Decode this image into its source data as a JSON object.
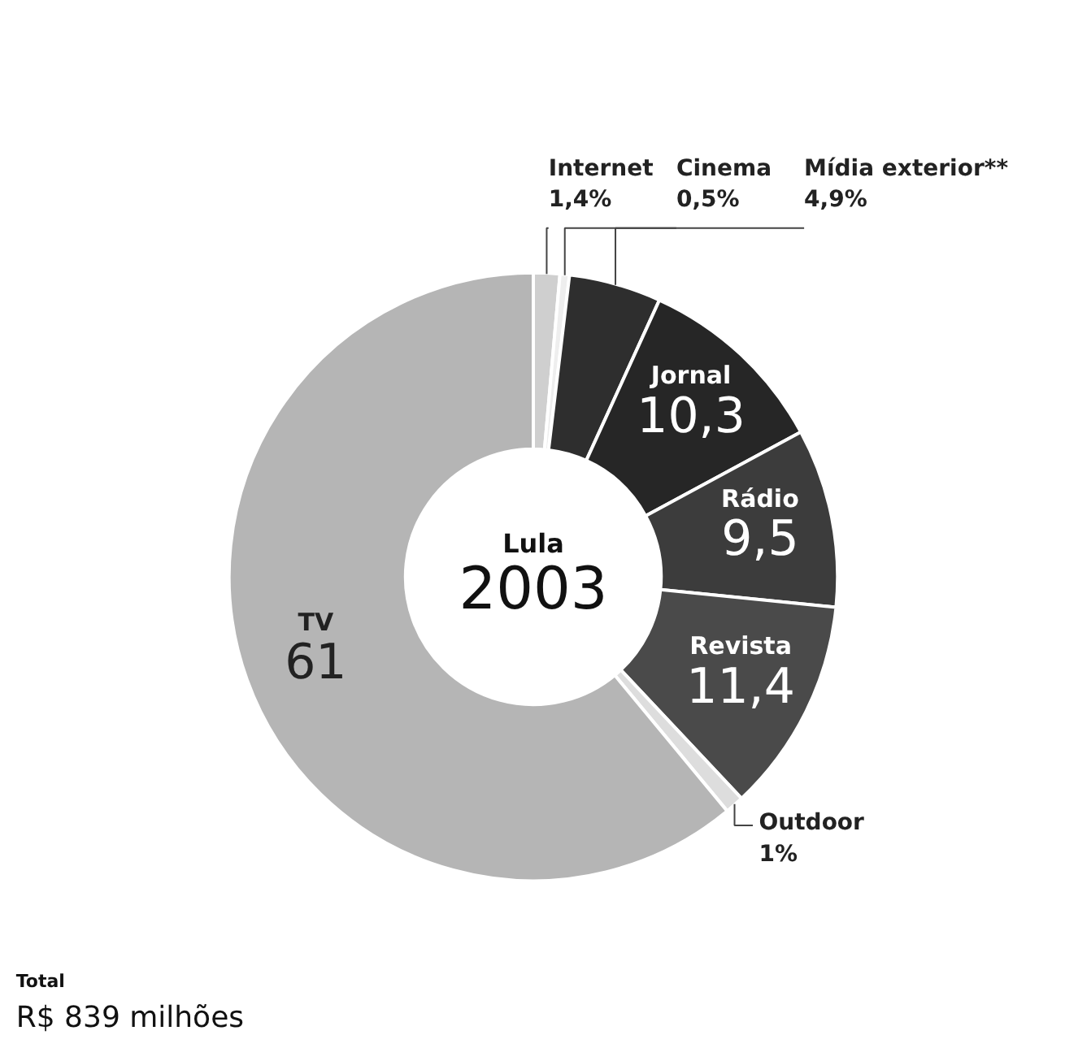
{
  "chart_data": {
    "type": "donut",
    "title": "Lula",
    "subtitle": "2003",
    "categories": [
      "Internet",
      "Cinema",
      "Mídia exterior**",
      "Jornal",
      "Rádio",
      "Revista",
      "Outdoor",
      "TV"
    ],
    "values": [
      1.4,
      0.5,
      4.9,
      10.3,
      9.5,
      11.4,
      1,
      61
    ],
    "value_labels": [
      "1,4%",
      "0,5%",
      "4,9%",
      "10,3",
      "9,5",
      "11,4",
      "1%",
      "61"
    ],
    "colors": [
      "#cfcfcf",
      "#eeeeee",
      "#2e2e2e",
      "#262626",
      "#3c3c3c",
      "#4a4a4a",
      "#dddddd",
      "#b5b5b5"
    ],
    "annotations": [
      "Total",
      "R$ 839 milhões"
    ]
  }
}
